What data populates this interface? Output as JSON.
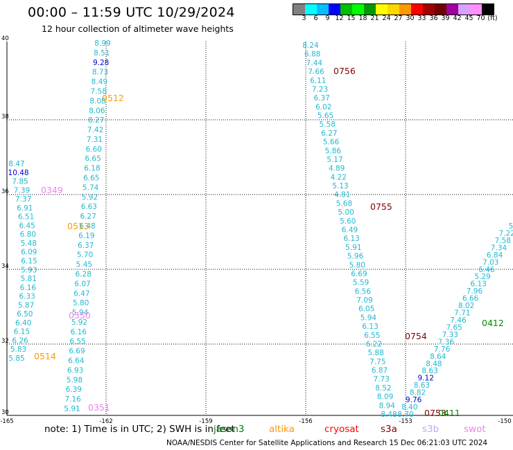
{
  "header": {
    "title": "00:00 – 11:59 UTC 10/29/2024",
    "subtitle": "12 hour collection of altimeter wave heights"
  },
  "legend": {
    "colors": [
      "#808080",
      "#00ffff",
      "#00bfff",
      "#0000ff",
      "#00bf00",
      "#00ff00",
      "#009900",
      "#ffff00",
      "#ffd700",
      "#ff9900",
      "#ff0000",
      "#a00000",
      "#700000",
      "#a000a0",
      "#d8a0ff",
      "#ff90ff",
      "#000000"
    ],
    "labels": [
      "3",
      "6",
      "9",
      "12",
      "15",
      "18",
      "21",
      "24",
      "27",
      "30",
      "33",
      "36",
      "39",
      "42",
      "45",
      "70",
      "(ft)"
    ]
  },
  "axes": {
    "x_ticks": [
      "-165",
      "-162",
      "-159",
      "-156",
      "-153",
      "-150"
    ],
    "y_ticks": [
      "40",
      "38",
      "36",
      "34",
      "32",
      "30"
    ]
  },
  "tracks": [
    {
      "name": "track-a",
      "color": "#20b8d0",
      "values": [
        {
          "v": "8.99",
          "c": "#20b8d0"
        },
        {
          "v": "8.51",
          "c": "#20b8d0"
        },
        {
          "v": "9.28",
          "c": "#0000cc"
        },
        {
          "v": "8.73",
          "c": "#20b8d0"
        },
        {
          "v": "8.49",
          "c": "#20b8d0"
        },
        {
          "v": "7.58",
          "c": "#20b8d0"
        },
        {
          "v": "8.08",
          "c": "#20b8d0"
        },
        {
          "v": "8.06",
          "c": "#20b8d0"
        },
        {
          "v": "8.27",
          "c": "#20b8d0"
        },
        {
          "v": "7.42",
          "c": "#20b8d0"
        },
        {
          "v": "7.31",
          "c": "#20b8d0"
        },
        {
          "v": "6.60",
          "c": "#20b8d0"
        },
        {
          "v": "6.65",
          "c": "#20b8d0"
        },
        {
          "v": "6.18",
          "c": "#20b8d0"
        },
        {
          "v": "6.65",
          "c": "#20b8d0"
        },
        {
          "v": "5.74",
          "c": "#20b8d0"
        },
        {
          "v": "5.92",
          "c": "#20b8d0"
        },
        {
          "v": "6.63",
          "c": "#20b8d0"
        },
        {
          "v": "6.27",
          "c": "#20b8d0"
        },
        {
          "v": "6.48",
          "c": "#20b8d0"
        },
        {
          "v": "6.19",
          "c": "#20b8d0"
        },
        {
          "v": "6.37",
          "c": "#20b8d0"
        },
        {
          "v": "5.70",
          "c": "#20b8d0"
        },
        {
          "v": "5.45",
          "c": "#20b8d0"
        },
        {
          "v": "6.28",
          "c": "#20b8d0"
        },
        {
          "v": "6.07",
          "c": "#20b8d0"
        },
        {
          "v": "6.47",
          "c": "#20b8d0"
        },
        {
          "v": "5.80",
          "c": "#20b8d0"
        },
        {
          "v": "5.94",
          "c": "#20b8d0"
        },
        {
          "v": "5.92",
          "c": "#20b8d0"
        },
        {
          "v": "6.16",
          "c": "#20b8d0"
        },
        {
          "v": "6.55",
          "c": "#20b8d0"
        },
        {
          "v": "6.69",
          "c": "#20b8d0"
        },
        {
          "v": "6.64",
          "c": "#20b8d0"
        },
        {
          "v": "6.93",
          "c": "#20b8d0"
        },
        {
          "v": "5.98",
          "c": "#20b8d0"
        },
        {
          "v": "6.39",
          "c": "#20b8d0"
        },
        {
          "v": "7.16",
          "c": "#20b8d0"
        },
        {
          "v": "5.91",
          "c": "#20b8d0"
        }
      ]
    },
    {
      "name": "track-b",
      "color": "#20b8d0",
      "values": [
        {
          "v": "8.47",
          "c": "#20b8d0"
        },
        {
          "v": "10.48",
          "c": "#0000cc"
        },
        {
          "v": "7.85",
          "c": "#20b8d0"
        },
        {
          "v": "7.39",
          "c": "#20b8d0"
        },
        {
          "v": "7.37",
          "c": "#20b8d0"
        },
        {
          "v": "6.91",
          "c": "#20b8d0"
        },
        {
          "v": "6.51",
          "c": "#20b8d0"
        },
        {
          "v": "6.45",
          "c": "#20b8d0"
        },
        {
          "v": "6.80",
          "c": "#20b8d0"
        },
        {
          "v": "5.48",
          "c": "#20b8d0"
        },
        {
          "v": "6.09",
          "c": "#20b8d0"
        },
        {
          "v": "6.15",
          "c": "#20b8d0"
        },
        {
          "v": "5.93",
          "c": "#20b8d0"
        },
        {
          "v": "5.81",
          "c": "#20b8d0"
        },
        {
          "v": "6.16",
          "c": "#20b8d0"
        },
        {
          "v": "6.33",
          "c": "#20b8d0"
        },
        {
          "v": "5.87",
          "c": "#20b8d0"
        },
        {
          "v": "6.50",
          "c": "#20b8d0"
        },
        {
          "v": "6.40",
          "c": "#20b8d0"
        },
        {
          "v": "6.15",
          "c": "#20b8d0"
        },
        {
          "v": "6.26",
          "c": "#20b8d0"
        },
        {
          "v": "5.83",
          "c": "#20b8d0"
        },
        {
          "v": "5.85",
          "c": "#20b8d0"
        }
      ]
    },
    {
      "name": "track-c",
      "color": "#20b8d0",
      "values": [
        {
          "v": "8.24",
          "c": "#20b8d0"
        },
        {
          "v": "6.88",
          "c": "#20b8d0"
        },
        {
          "v": "7.44",
          "c": "#20b8d0"
        },
        {
          "v": "7.66",
          "c": "#20b8d0"
        },
        {
          "v": "6.11",
          "c": "#20b8d0"
        },
        {
          "v": "7.23",
          "c": "#20b8d0"
        },
        {
          "v": "6.37",
          "c": "#20b8d0"
        },
        {
          "v": "6.02",
          "c": "#20b8d0"
        },
        {
          "v": "5.65",
          "c": "#20b8d0"
        },
        {
          "v": "5.58",
          "c": "#20b8d0"
        },
        {
          "v": "6.27",
          "c": "#20b8d0"
        },
        {
          "v": "5.66",
          "c": "#20b8d0"
        },
        {
          "v": "5.86",
          "c": "#20b8d0"
        },
        {
          "v": "5.17",
          "c": "#20b8d0"
        },
        {
          "v": "4.89",
          "c": "#20b8d0"
        },
        {
          "v": "4.22",
          "c": "#20b8d0"
        },
        {
          "v": "5.13",
          "c": "#20b8d0"
        },
        {
          "v": "4.81",
          "c": "#20b8d0"
        },
        {
          "v": "5.68",
          "c": "#20b8d0"
        },
        {
          "v": "5.00",
          "c": "#20b8d0"
        },
        {
          "v": "5.60",
          "c": "#20b8d0"
        },
        {
          "v": "6.49",
          "c": "#20b8d0"
        },
        {
          "v": "6.13",
          "c": "#20b8d0"
        },
        {
          "v": "5.91",
          "c": "#20b8d0"
        },
        {
          "v": "5.96",
          "c": "#20b8d0"
        },
        {
          "v": "5.80",
          "c": "#20b8d0"
        },
        {
          "v": "6.69",
          "c": "#20b8d0"
        },
        {
          "v": "5.59",
          "c": "#20b8d0"
        },
        {
          "v": "6.56",
          "c": "#20b8d0"
        },
        {
          "v": "7.09",
          "c": "#20b8d0"
        },
        {
          "v": "6.05",
          "c": "#20b8d0"
        },
        {
          "v": "5.94",
          "c": "#20b8d0"
        },
        {
          "v": "6.13",
          "c": "#20b8d0"
        },
        {
          "v": "6.55",
          "c": "#20b8d0"
        },
        {
          "v": "6.22",
          "c": "#20b8d0"
        },
        {
          "v": "5.88",
          "c": "#20b8d0"
        },
        {
          "v": "7.75",
          "c": "#20b8d0"
        },
        {
          "v": "6.87",
          "c": "#20b8d0"
        },
        {
          "v": "7.73",
          "c": "#20b8d0"
        },
        {
          "v": "8.52",
          "c": "#20b8d0"
        },
        {
          "v": "8.09",
          "c": "#20b8d0"
        },
        {
          "v": "8.94",
          "c": "#20b8d0"
        },
        {
          "v": "8.48",
          "c": "#20b8d0"
        }
      ]
    },
    {
      "name": "track-d",
      "color": "#20b8d0",
      "values": [
        {
          "v": "8.70",
          "c": "#20b8d0"
        },
        {
          "v": "8.40",
          "c": "#20b8d0"
        },
        {
          "v": "9.76",
          "c": "#0000cc"
        },
        {
          "v": "8.82",
          "c": "#20b8d0"
        },
        {
          "v": "8.63",
          "c": "#20b8d0"
        },
        {
          "v": "9.12",
          "c": "#0000cc"
        },
        {
          "v": "8.63",
          "c": "#20b8d0"
        },
        {
          "v": "8.48",
          "c": "#20b8d0"
        },
        {
          "v": "8.64",
          "c": "#20b8d0"
        },
        {
          "v": "7.76",
          "c": "#20b8d0"
        },
        {
          "v": "7.36",
          "c": "#20b8d0"
        },
        {
          "v": "7.33",
          "c": "#20b8d0"
        },
        {
          "v": "7.65",
          "c": "#20b8d0"
        },
        {
          "v": "7.46",
          "c": "#20b8d0"
        },
        {
          "v": "7.71",
          "c": "#20b8d0"
        },
        {
          "v": "8.02",
          "c": "#20b8d0"
        },
        {
          "v": "6.66",
          "c": "#20b8d0"
        },
        {
          "v": "7.96",
          "c": "#20b8d0"
        },
        {
          "v": "6.13",
          "c": "#20b8d0"
        },
        {
          "v": "5.29",
          "c": "#20b8d0"
        },
        {
          "v": "6.46",
          "c": "#20b8d0"
        },
        {
          "v": "7.03",
          "c": "#20b8d0"
        },
        {
          "v": "6.84",
          "c": "#20b8d0"
        },
        {
          "v": "7.34",
          "c": "#20b8d0"
        },
        {
          "v": "7.58",
          "c": "#20b8d0"
        },
        {
          "v": "7.22",
          "c": "#20b8d0"
        },
        {
          "v": "5",
          "c": "#20b8d0"
        }
      ]
    }
  ],
  "pass_labels": [
    {
      "text": "0512",
      "color": "#ff9900"
    },
    {
      "text": "0513",
      "color": "#ff9900"
    },
    {
      "text": "0514",
      "color": "#ff9900"
    },
    {
      "text": "0349",
      "color": "#ee82ee"
    },
    {
      "text": "0350",
      "color": "#ee82ee"
    },
    {
      "text": "0351",
      "color": "#ee82ee"
    },
    {
      "text": "0756",
      "color": "#800000"
    },
    {
      "text": "0755",
      "color": "#800000"
    },
    {
      "text": "0754",
      "color": "#800000"
    },
    {
      "text": "0753",
      "color": "#800000"
    },
    {
      "text": "0412",
      "color": "#008800"
    },
    {
      "text": "0411",
      "color": "#008800"
    }
  ],
  "footer": {
    "note": "note:  1) Time is in UTC; 2) SWH is in feet",
    "satellites": [
      {
        "name": "jason3",
        "color": "#008000"
      },
      {
        "name": "altika",
        "color": "#ff9900"
      },
      {
        "name": "cryosat",
        "color": "#ff0000"
      },
      {
        "name": "s3a",
        "color": "#800000"
      },
      {
        "name": "s3b",
        "color": "#c8a0ff"
      },
      {
        "name": "swot",
        "color": "#ee82ee"
      }
    ],
    "credit": "NOAA/NESDIS Center for Satellite Applications and Research    15 Dec 06:21:03 UTC 2024"
  }
}
